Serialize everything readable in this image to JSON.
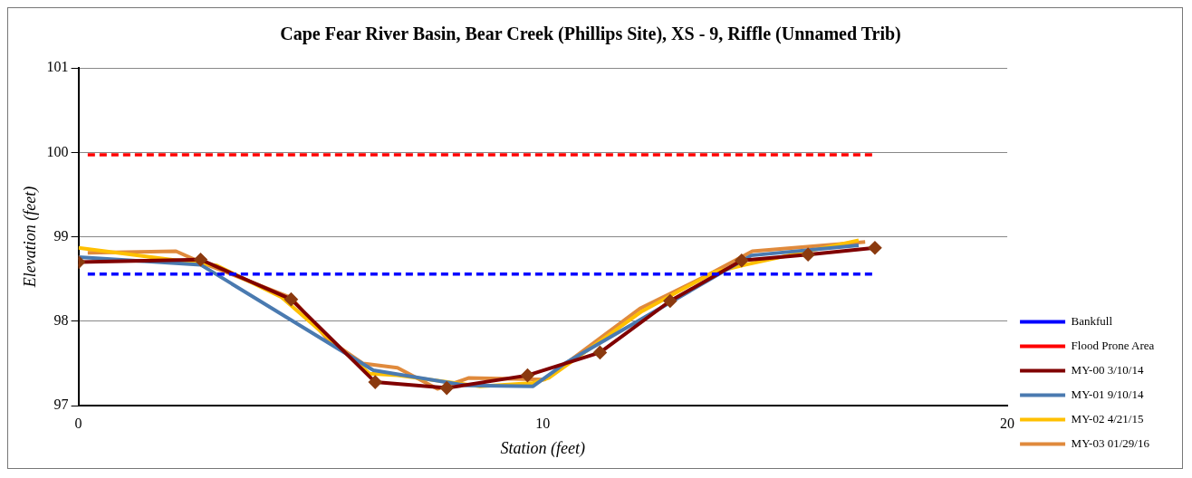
{
  "chart_data": {
    "type": "line",
    "title": "Cape Fear River Basin, Bear Creek (Phillips Site), XS - 9, Riffle (Unnamed Trib)",
    "xlabel": "Station (feet)",
    "ylabel": "Elevation (feet)",
    "xlim": [
      0,
      20
    ],
    "xticks": [
      0,
      10,
      20
    ],
    "ylim": [
      97,
      101
    ],
    "yticks": [
      97,
      98,
      99,
      100,
      101
    ],
    "grid": "y",
    "legend": "bottom right",
    "series": [
      {
        "name": "Bankfull",
        "color": "#0000ff",
        "line_style": "dashed",
        "marker": "none",
        "x": [
          0.2,
          17.1
        ],
        "values": [
          98.56,
          98.56
        ]
      },
      {
        "name": "Flood Prone Area",
        "color": "#ff0000",
        "line_style": "dashed",
        "marker": "none",
        "x": [
          0.2,
          17.1
        ],
        "values": [
          99.97,
          99.97
        ]
      },
      {
        "name": "MY-00 3/10/14",
        "color": "#800000",
        "line_style": "solid",
        "marker": "diamond",
        "x": [
          0,
          2.63,
          4.58,
          6.39,
          7.93,
          9.67,
          11.23,
          12.74,
          14.28,
          15.71,
          17.15
        ],
        "values": [
          98.7,
          98.73,
          98.26,
          97.28,
          97.21,
          97.36,
          97.63,
          98.24,
          98.72,
          98.79,
          98.87
        ]
      },
      {
        "name": "MY-01 9/10/14",
        "color": "#4a7ab0",
        "line_style": "solid",
        "marker": "none",
        "x": [
          0,
          2.63,
          6.35,
          8.36,
          9.79,
          10.47,
          14.49,
          16.8
        ],
        "values": [
          98.76,
          98.67,
          97.42,
          97.24,
          97.23,
          97.5,
          98.78,
          98.9
        ]
      },
      {
        "name": "MY-02 4/21/15",
        "color": "#ffc000",
        "line_style": "solid",
        "marker": "none",
        "x": [
          0,
          2.98,
          4.36,
          6.27,
          6.87,
          8.65,
          9.79,
          10.13,
          12.14,
          13.68,
          14.37,
          16.8
        ],
        "values": [
          98.87,
          98.66,
          98.29,
          97.38,
          97.36,
          97.23,
          97.27,
          97.33,
          98.12,
          98.58,
          98.67,
          98.96
        ]
      },
      {
        "name": "MY-03 01/29/16",
        "color": "#e08a3c",
        "line_style": "solid",
        "marker": "none",
        "x": [
          0.2,
          2.1,
          2.63,
          4.58,
          5.36,
          6.13,
          6.87,
          7.73,
          8.41,
          10.03,
          12.09,
          13.56,
          14.51,
          16.94
        ],
        "values": [
          98.81,
          98.83,
          98.7,
          98.28,
          97.79,
          97.5,
          97.45,
          97.2,
          97.33,
          97.31,
          98.15,
          98.55,
          98.83,
          98.94
        ]
      }
    ]
  }
}
